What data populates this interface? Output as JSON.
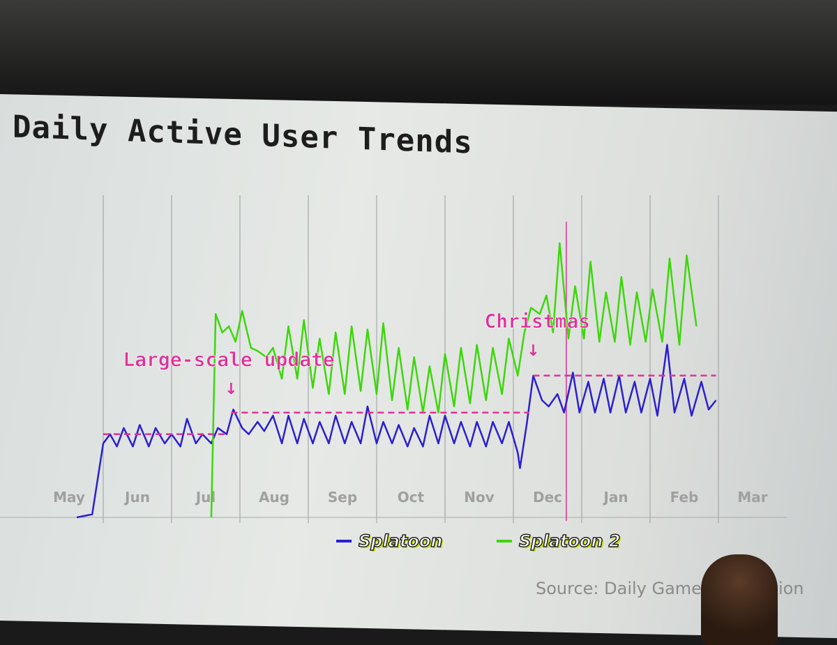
{
  "slide": {
    "title": "Daily Active User Trends",
    "source": "Source: Daily Game Information"
  },
  "colors": {
    "splatoon": "#2b1fd0",
    "splatoon2": "#3cd70a",
    "annotation": "#e0309a",
    "month_label": "#a0a0a0"
  },
  "chart_data": {
    "type": "line",
    "title": "Daily Active User Trends",
    "xlabel": "",
    "ylabel": "",
    "y_axis": "unlabeled (relative scale)",
    "ylim": [
      0,
      100
    ],
    "grid": "vertical month lines",
    "legend_placement": "bottom-center",
    "x_tick_labels": [
      "May",
      "Jun",
      "Jul",
      "Aug",
      "Sep",
      "Oct",
      "Nov",
      "Dec",
      "Jan",
      "Feb",
      "Mar"
    ],
    "series": [
      {
        "name": "Splatoon",
        "color": "#2b1fd0",
        "points": [
          [
            "05-20",
            0
          ],
          [
            "05-27",
            1
          ],
          [
            "06-01",
            24
          ],
          [
            "06-04",
            27
          ],
          [
            "06-07",
            23
          ],
          [
            "06-10",
            29
          ],
          [
            "06-14",
            23
          ],
          [
            "06-17",
            30
          ],
          [
            "06-21",
            23
          ],
          [
            "06-24",
            29
          ],
          [
            "06-28",
            24
          ],
          [
            "07-01",
            27
          ],
          [
            "07-05",
            23
          ],
          [
            "07-08",
            32
          ],
          [
            "07-12",
            24
          ],
          [
            "07-15",
            27
          ],
          [
            "07-19",
            24
          ],
          [
            "07-22",
            29
          ],
          [
            "07-26",
            27
          ],
          [
            "07-29",
            35
          ],
          [
            "08-02",
            29
          ],
          [
            "08-05",
            27
          ],
          [
            "08-09",
            31
          ],
          [
            "08-12",
            28
          ],
          [
            "08-16",
            33
          ],
          [
            "08-20",
            24
          ],
          [
            "08-23",
            33
          ],
          [
            "08-27",
            24
          ],
          [
            "08-30",
            32
          ],
          [
            "09-03",
            24
          ],
          [
            "09-06",
            31
          ],
          [
            "09-10",
            24
          ],
          [
            "09-13",
            33
          ],
          [
            "09-17",
            24
          ],
          [
            "09-20",
            31
          ],
          [
            "09-24",
            24
          ],
          [
            "09-27",
            36
          ],
          [
            "10-01",
            24
          ],
          [
            "10-04",
            31
          ],
          [
            "10-08",
            24
          ],
          [
            "10-11",
            30
          ],
          [
            "10-15",
            23
          ],
          [
            "10-18",
            29
          ],
          [
            "10-22",
            23
          ],
          [
            "10-25",
            33
          ],
          [
            "10-29",
            24
          ],
          [
            "11-01",
            33
          ],
          [
            "11-05",
            24
          ],
          [
            "11-08",
            31
          ],
          [
            "11-12",
            23
          ],
          [
            "11-15",
            31
          ],
          [
            "11-19",
            23
          ],
          [
            "11-22",
            31
          ],
          [
            "11-26",
            24
          ],
          [
            "11-29",
            31
          ],
          [
            "12-03",
            21
          ],
          [
            "12-04",
            16
          ],
          [
            "12-07",
            30
          ],
          [
            "12-10",
            46
          ],
          [
            "12-14",
            38
          ],
          [
            "12-17",
            36
          ],
          [
            "12-21",
            40
          ],
          [
            "12-24",
            34
          ],
          [
            "12-28",
            47
          ],
          [
            "12-31",
            34
          ],
          [
            "01-04",
            44
          ],
          [
            "01-07",
            34
          ],
          [
            "01-11",
            45
          ],
          [
            "01-14",
            34
          ],
          [
            "01-18",
            46
          ],
          [
            "01-21",
            34
          ],
          [
            "01-25",
            44
          ],
          [
            "01-28",
            34
          ],
          [
            "02-01",
            45
          ],
          [
            "02-04",
            33
          ],
          [
            "02-08",
            56
          ],
          [
            "02-11",
            34
          ],
          [
            "02-15",
            45
          ],
          [
            "02-18",
            33
          ],
          [
            "02-22",
            44
          ],
          [
            "02-25",
            35
          ],
          [
            "02-28",
            38
          ]
        ]
      },
      {
        "name": "Splatoon 2",
        "color": "#3cd70a",
        "points": [
          [
            "07-19",
            0
          ],
          [
            "07-21",
            66
          ],
          [
            "07-24",
            60
          ],
          [
            "07-27",
            62
          ],
          [
            "07-30",
            57
          ],
          [
            "08-02",
            67
          ],
          [
            "08-06",
            55
          ],
          [
            "08-09",
            54
          ],
          [
            "08-13",
            52
          ],
          [
            "08-16",
            55
          ],
          [
            "08-20",
            45
          ],
          [
            "08-23",
            62
          ],
          [
            "08-27",
            45
          ],
          [
            "08-30",
            64
          ],
          [
            "09-03",
            42
          ],
          [
            "09-06",
            58
          ],
          [
            "09-10",
            40
          ],
          [
            "09-13",
            60
          ],
          [
            "09-17",
            40
          ],
          [
            "09-20",
            62
          ],
          [
            "09-24",
            41
          ],
          [
            "09-27",
            61
          ],
          [
            "10-01",
            40
          ],
          [
            "10-04",
            63
          ],
          [
            "10-08",
            38
          ],
          [
            "10-11",
            55
          ],
          [
            "10-15",
            35
          ],
          [
            "10-18",
            52
          ],
          [
            "10-22",
            34
          ],
          [
            "10-25",
            49
          ],
          [
            "10-29",
            34
          ],
          [
            "11-01",
            53
          ],
          [
            "11-05",
            36
          ],
          [
            "11-08",
            55
          ],
          [
            "11-12",
            37
          ],
          [
            "11-15",
            56
          ],
          [
            "11-19",
            38
          ],
          [
            "11-22",
            55
          ],
          [
            "11-26",
            40
          ],
          [
            "11-29",
            58
          ],
          [
            "12-03",
            46
          ],
          [
            "12-06",
            60
          ],
          [
            "12-09",
            68
          ],
          [
            "12-13",
            66
          ],
          [
            "12-16",
            72
          ],
          [
            "12-19",
            60
          ],
          [
            "12-22",
            89
          ],
          [
            "12-26",
            58
          ],
          [
            "12-29",
            75
          ],
          [
            "01-02",
            58
          ],
          [
            "01-05",
            83
          ],
          [
            "01-09",
            57
          ],
          [
            "01-12",
            73
          ],
          [
            "01-16",
            57
          ],
          [
            "01-19",
            78
          ],
          [
            "01-23",
            56
          ],
          [
            "01-26",
            73
          ],
          [
            "01-30",
            57
          ],
          [
            "02-02",
            74
          ],
          [
            "02-06",
            57
          ],
          [
            "02-09",
            84
          ],
          [
            "02-13",
            56
          ],
          [
            "02-16",
            85
          ],
          [
            "02-20",
            62
          ]
        ]
      }
    ],
    "reference_lines": [
      {
        "from": "06-01",
        "to": "07-26",
        "value": 27
      },
      {
        "from": "07-28",
        "to": "12-08",
        "value": 34
      },
      {
        "from": "12-10",
        "to": "02-28",
        "value": 46
      }
    ],
    "annotations": [
      {
        "text": "Large-scale update",
        "date": "07-28",
        "arrow": "↓"
      },
      {
        "text": "Christmas",
        "date": "12-10",
        "arrow": "↓",
        "vertical_line_date": "12-25"
      }
    ]
  }
}
